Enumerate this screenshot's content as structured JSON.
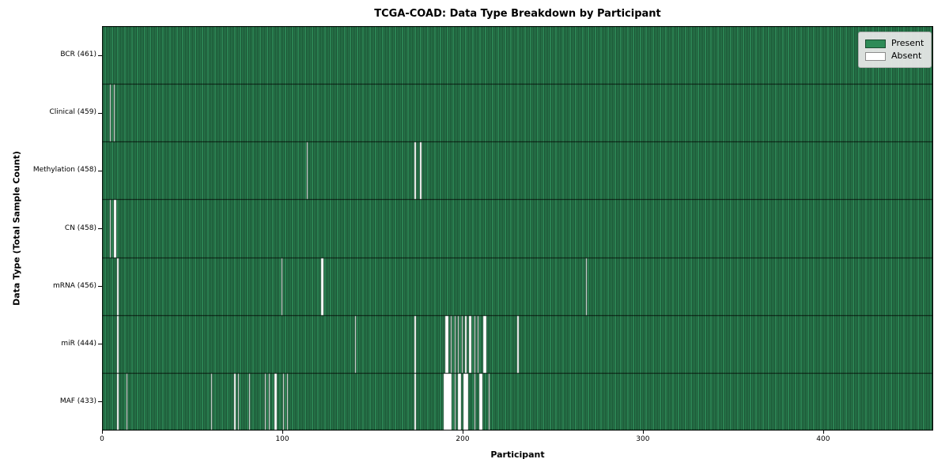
{
  "title": "TCGA-COAD: Data Type Breakdown by Participant",
  "axes": {
    "x_label": "Participant",
    "y_label": "Data Type (Total Sample Count)",
    "x_ticks": [
      0,
      100,
      200,
      300,
      400
    ]
  },
  "legend": {
    "items": [
      {
        "label": "Present",
        "color": "#2e8b57"
      },
      {
        "label": "Absent",
        "color": "#ffffff"
      }
    ]
  },
  "colors": {
    "present": "#2e8b57",
    "absent": "#ffffff",
    "cell_edge": "rgba(0,0,0,0.5)",
    "row_edge": "rgba(0,0,0,0.78)",
    "spine": "#000000"
  },
  "chart_data": {
    "type": "heatmap",
    "title": "TCGA-COAD: Data Type Breakdown by Participant",
    "xlabel": "Participant",
    "ylabel": "Data Type (Total Sample Count)",
    "x_domain": [
      0,
      461
    ],
    "n_participants": 461,
    "legend_position": "upper right",
    "rows": [
      {
        "name": "BCR",
        "count": 461,
        "label": "BCR (461)",
        "absent": []
      },
      {
        "name": "Clinical",
        "count": 459,
        "label": "Clinical (459)",
        "absent": [
          4,
          6
        ]
      },
      {
        "name": "Methylation",
        "count": 458,
        "label": "Methylation (458)",
        "absent": [
          113,
          173,
          176
        ]
      },
      {
        "name": "CN",
        "count": 458,
        "label": "CN (458)",
        "absent": [
          4,
          6,
          7
        ]
      },
      {
        "name": "mRNA",
        "count": 456,
        "label": "mRNA (456)",
        "absent": [
          8,
          99,
          121,
          122,
          268
        ]
      },
      {
        "name": "miR",
        "count": 444,
        "label": "miR (444)",
        "absent": [
          8,
          140,
          173,
          190,
          191,
          193,
          195,
          197,
          199,
          201,
          203,
          204,
          206,
          208,
          211,
          212,
          230
        ]
      },
      {
        "name": "MAF",
        "count": 433,
        "label": "MAF (433)",
        "absent": [
          8,
          13,
          60,
          73,
          75,
          81,
          90,
          92,
          95,
          96,
          100,
          102,
          173,
          189,
          190,
          191,
          192,
          193,
          195,
          197,
          198,
          200,
          201,
          202,
          206,
          209,
          210,
          214
        ]
      }
    ]
  }
}
